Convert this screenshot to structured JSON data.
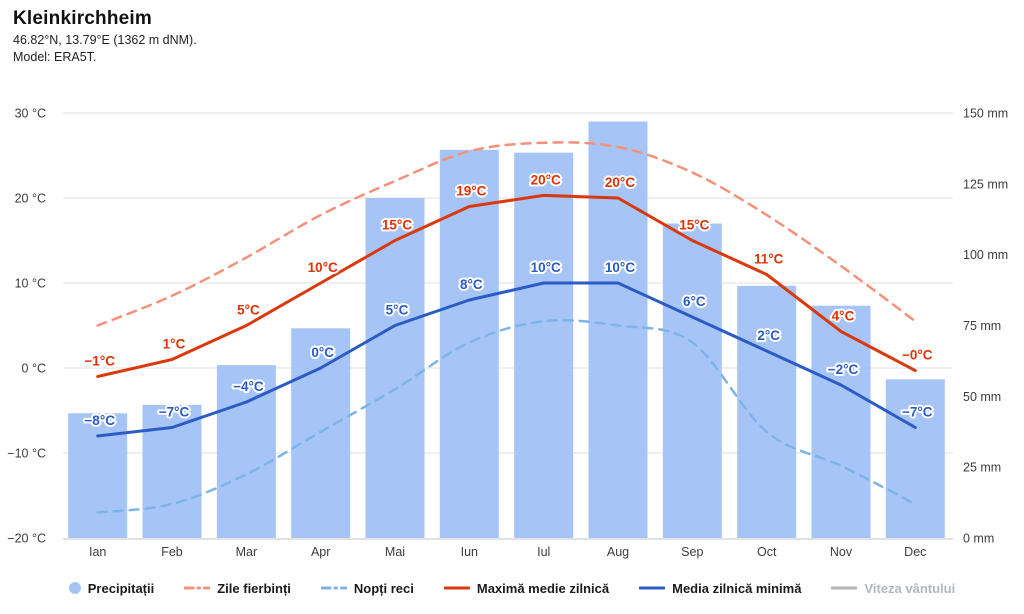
{
  "header": {
    "title": "Kleinkirchheim",
    "coordinates": "46.82°N, 13.79°E (1362 m dNM).",
    "model": "Model: ERA5T."
  },
  "chart_data": {
    "type": "combo-climate",
    "title": "Kleinkirchheim",
    "categories": [
      "Ian",
      "Feb",
      "Mar",
      "Apr",
      "Mai",
      "Iun",
      "Iul",
      "Aug",
      "Sep",
      "Oct",
      "Nov",
      "Dec"
    ],
    "y_left": {
      "unit": "°C",
      "min": -20,
      "max": 30,
      "ticks": [
        "30 °C",
        "20 °C",
        "10 °C",
        "0 °C",
        "−10 °C",
        "−20 °C"
      ],
      "tick_values": [
        30,
        20,
        10,
        0,
        -10,
        -20
      ]
    },
    "y_right": {
      "unit": "mm",
      "min": 0,
      "max": 150,
      "ticks": [
        "150 mm",
        "125 mm",
        "100 mm",
        "75 mm",
        "50 mm",
        "25 mm",
        "0 mm"
      ],
      "tick_values": [
        150,
        125,
        100,
        75,
        50,
        25,
        0
      ]
    },
    "grid": true,
    "legend_position": "bottom",
    "series": [
      {
        "id": "precipitation",
        "name": "Precipitații",
        "type": "bar",
        "axis": "right",
        "unit": "mm",
        "color": "#a7c4f7",
        "values": [
          44,
          47,
          61,
          74,
          120,
          137,
          136,
          147,
          111,
          89,
          82,
          56
        ]
      },
      {
        "id": "hot-days",
        "name": "Zile fierbinți",
        "type": "line",
        "dashed": true,
        "axis": "left",
        "unit": "°C",
        "color": "#f5917a",
        "values": [
          5,
          8.5,
          13,
          18,
          22,
          25.5,
          26.5,
          26,
          23,
          18,
          12,
          5.5
        ]
      },
      {
        "id": "cold-nights",
        "name": "Nopți reci",
        "type": "line",
        "dashed": true,
        "axis": "left",
        "unit": "°C",
        "color": "#7cb4e6",
        "values": [
          -17,
          -16,
          -12.5,
          -7.5,
          -2.5,
          3,
          5.5,
          5,
          3,
          -7.5,
          -11.5,
          -16
        ]
      },
      {
        "id": "daily-max",
        "name": "Maximă medie zilnică",
        "type": "line",
        "dashed": false,
        "axis": "left",
        "unit": "°C",
        "color": "#d93a0d",
        "label_color": "#e03206",
        "values": [
          -1,
          1,
          5,
          10,
          15,
          19,
          20.3,
          20,
          15,
          11,
          4.3,
          -0.3
        ],
        "point_labels": [
          "−1°C",
          "1°C",
          "5°C",
          "10°C",
          "15°C",
          "19°C",
          "20°C",
          "20°C",
          "15°C",
          "11°C",
          "4°C",
          "−0°C"
        ]
      },
      {
        "id": "daily-min",
        "name": "Media zilnică minimă",
        "type": "line",
        "dashed": false,
        "axis": "left",
        "unit": "°C",
        "color": "#2a5cc4",
        "label_color": "#2a5cc4",
        "values": [
          -8,
          -7,
          -4,
          0,
          5,
          8,
          10,
          10,
          6,
          2,
          -2,
          -7
        ],
        "point_labels": [
          "−8°C",
          "−7°C",
          "−4°C",
          "0°C",
          "5°C",
          "8°C",
          "10°C",
          "10°C",
          "6°C",
          "2°C",
          "−2°C",
          "−7°C"
        ]
      },
      {
        "id": "wind-speed",
        "name": "Viteza vântului",
        "type": "line",
        "dashed": false,
        "axis": "none",
        "unit": "",
        "color": "#b3b3b3",
        "disabled": true,
        "values": []
      }
    ],
    "colors": {
      "grid_line": "#efefef",
      "axis_line": "#e2e2e2",
      "tick_text": "#3c3c3c"
    }
  }
}
